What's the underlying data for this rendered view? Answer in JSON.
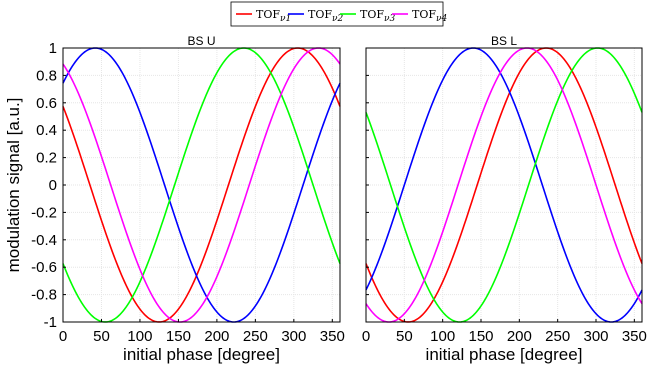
{
  "chart_data": [
    {
      "type": "line",
      "title": "BS U",
      "xlabel": "initial phase [degree]",
      "ylabel": "modulation signal [a.u.]",
      "xlim": [
        0,
        360
      ],
      "ylim": [
        -1,
        1
      ],
      "xticks": [
        "0",
        "50",
        "100",
        "150",
        "200",
        "250",
        "300",
        "350"
      ],
      "yticks": [
        "1",
        "0.8",
        "0.6",
        "0.4",
        "0.2",
        "0",
        "-0.2",
        "-0.4",
        "-0.6",
        "-0.8",
        "-1"
      ],
      "grid": true,
      "legend": "top-center",
      "series": [
        {
          "name": "TOF",
          "sub": "ν1",
          "color": "#ff0000",
          "peak_phase": 305
        },
        {
          "name": "TOF",
          "sub": "ν2",
          "color": "#0000ff",
          "peak_phase": 42
        },
        {
          "name": "TOF",
          "sub": "ν3",
          "color": "#00ff00",
          "peak_phase": 235
        },
        {
          "name": "TOF",
          "sub": "ν4",
          "color": "#ff00ff",
          "peak_phase": 332
        }
      ]
    },
    {
      "type": "line",
      "title": "BS L",
      "xlabel": "initial phase [degree]",
      "ylabel": "",
      "xlim": [
        0,
        360
      ],
      "ylim": [
        -1,
        1
      ],
      "xticks": [
        "0",
        "50",
        "100",
        "150",
        "200",
        "250",
        "300",
        "350"
      ],
      "grid": true,
      "series": [
        {
          "name": "TOF",
          "sub": "ν1",
          "color": "#ff0000",
          "peak_phase": 235
        },
        {
          "name": "TOF",
          "sub": "ν2",
          "color": "#0000ff",
          "peak_phase": 140
        },
        {
          "name": "TOF",
          "sub": "ν3",
          "color": "#00ff00",
          "peak_phase": 302
        },
        {
          "name": "TOF",
          "sub": "ν4",
          "color": "#ff00ff",
          "peak_phase": 210
        }
      ]
    }
  ]
}
